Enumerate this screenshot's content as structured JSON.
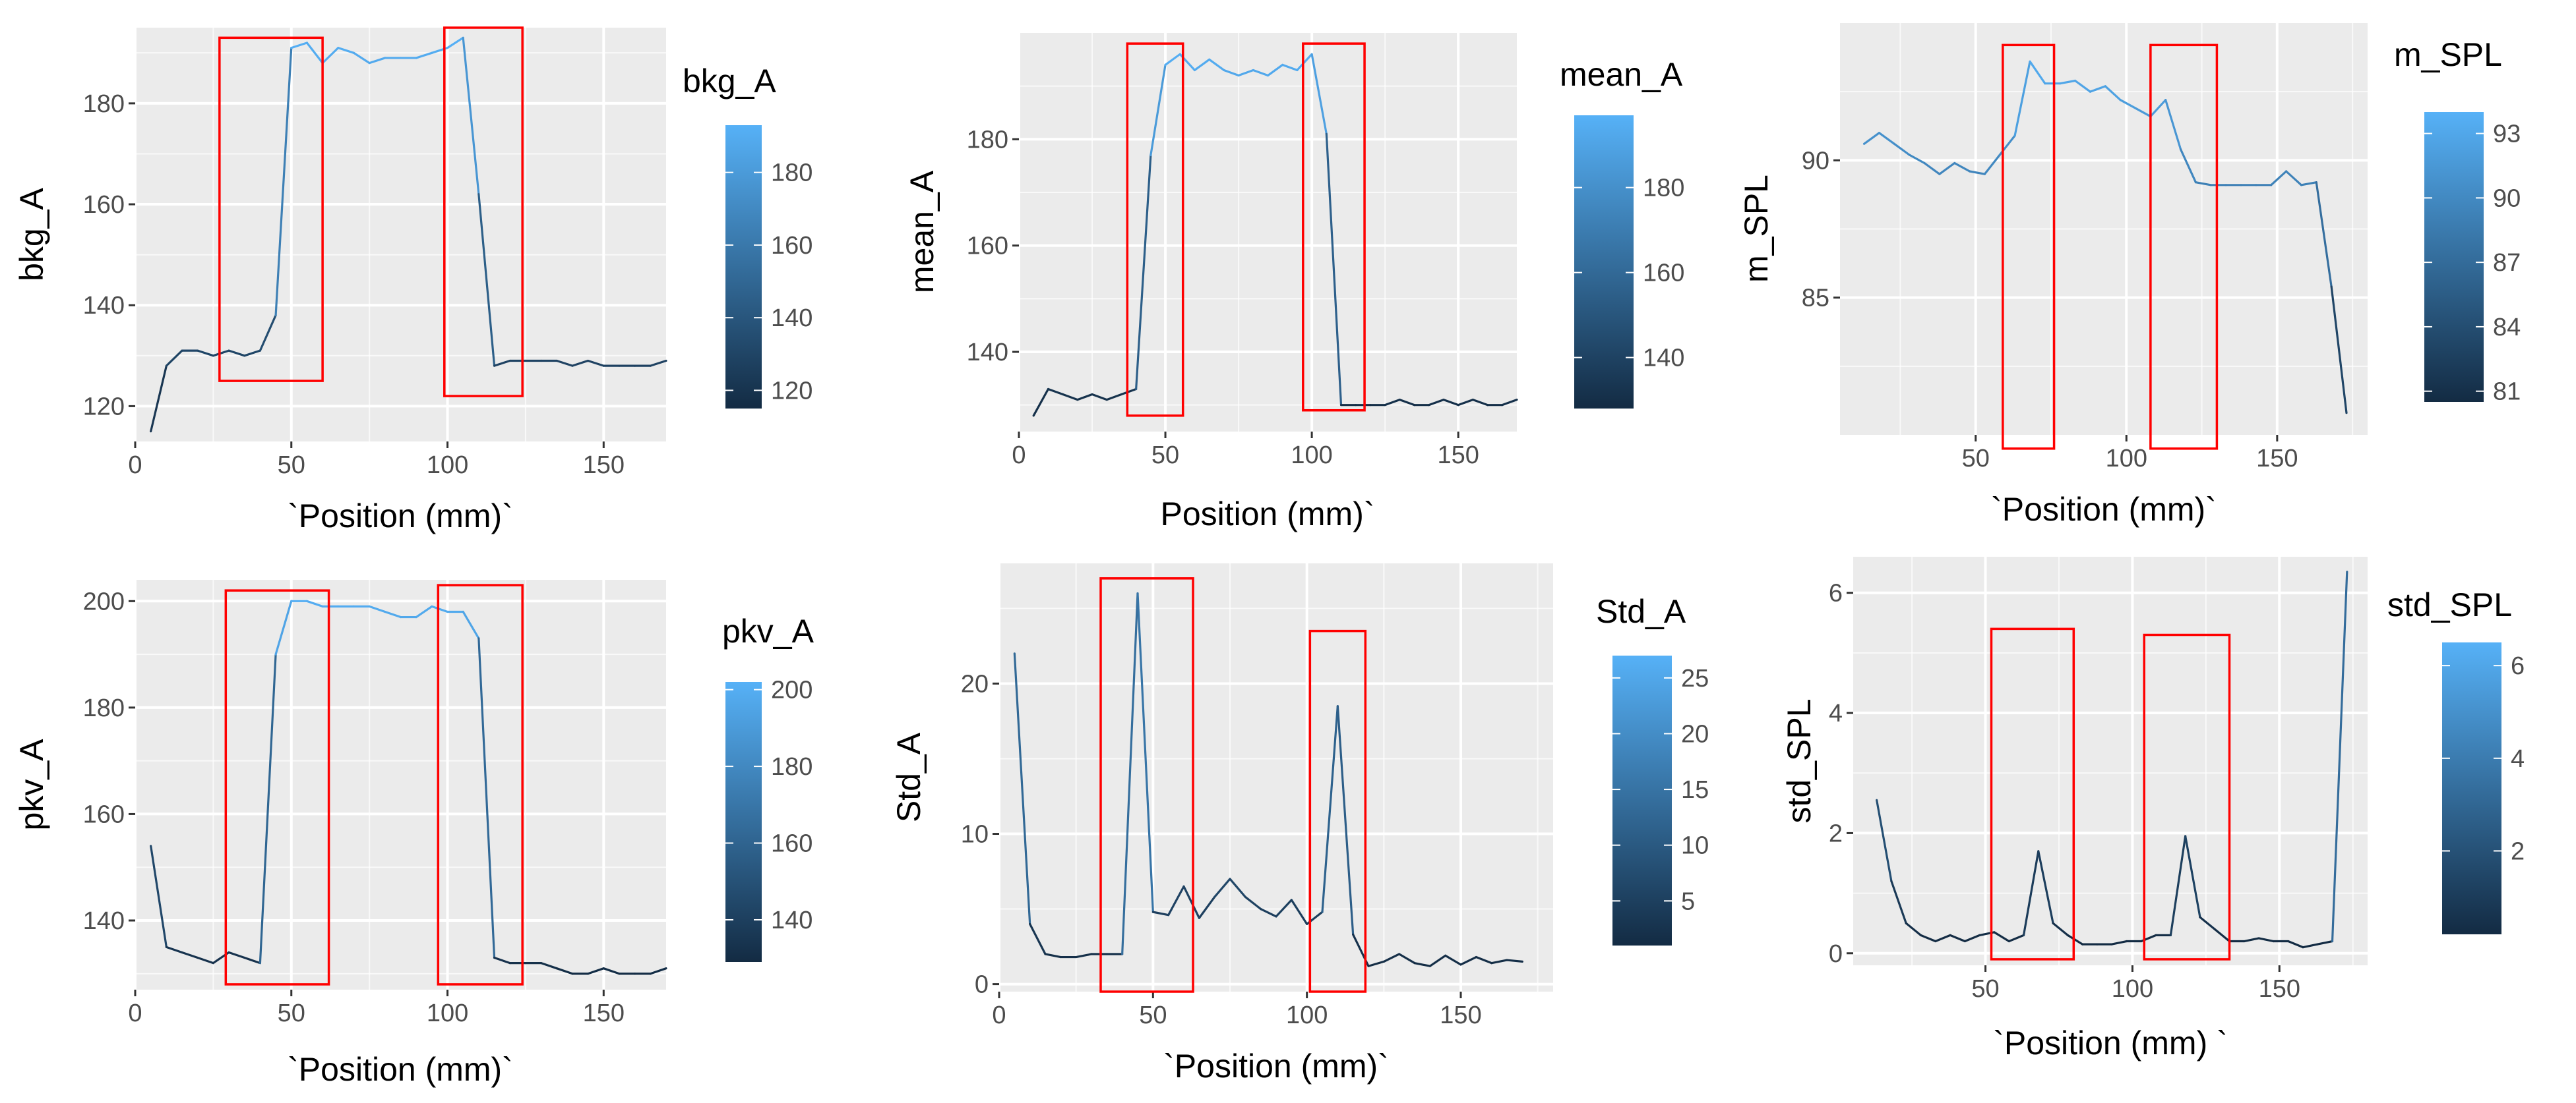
{
  "colors": {
    "panel_bg": "#ebebeb",
    "grid_major": "#ffffff",
    "line_low": "#132b43",
    "line_high": "#56b1f7",
    "box": "#ff0000",
    "tick": "#333333"
  },
  "chart_data": [
    {
      "type": "line",
      "xlabel": "`Position (mm)`",
      "ylabel": "bkg_A",
      "legend_title": "bkg_A",
      "xlim": [
        0,
        170
      ],
      "ylim": [
        113,
        195
      ],
      "xticks": [
        0,
        50,
        100,
        150
      ],
      "yticks": [
        120,
        140,
        160,
        180
      ],
      "legend_ticks": [
        120,
        140,
        160,
        180
      ],
      "legend_range": [
        115,
        193
      ],
      "x": [
        5,
        10,
        15,
        20,
        25,
        30,
        35,
        40,
        45,
        50,
        55,
        60,
        65,
        70,
        75,
        80,
        85,
        90,
        95,
        100,
        105,
        110,
        115,
        120,
        125,
        130,
        135,
        140,
        145,
        150,
        155,
        160,
        165,
        170
      ],
      "y": [
        115,
        128,
        131,
        131,
        130,
        131,
        130,
        131,
        138,
        191,
        192,
        188,
        191,
        190,
        188,
        189,
        189,
        189,
        190,
        191,
        193,
        162,
        128,
        129,
        129,
        129,
        129,
        128,
        129,
        128,
        128,
        128,
        128,
        129
      ],
      "boxes": [
        [
          27,
          60,
          125,
          193
        ],
        [
          99,
          124,
          122,
          195
        ]
      ]
    },
    {
      "type": "line",
      "xlabel": "Position (mm)`",
      "ylabel": "mean_A",
      "legend_title": "mean_A",
      "xlim": [
        0,
        170
      ],
      "ylim": [
        125,
        200
      ],
      "xticks": [
        0,
        50,
        100,
        150
      ],
      "yticks": [
        140,
        160,
        180
      ],
      "legend_ticks": [
        140,
        160,
        180
      ],
      "legend_range": [
        128,
        197
      ],
      "x": [
        5,
        10,
        15,
        20,
        25,
        30,
        35,
        40,
        45,
        50,
        55,
        60,
        65,
        70,
        75,
        80,
        85,
        90,
        95,
        100,
        105,
        110,
        115,
        120,
        125,
        130,
        135,
        140,
        145,
        150,
        155,
        160,
        165,
        170
      ],
      "y": [
        128,
        133,
        132,
        131,
        132,
        131,
        132,
        133,
        177,
        194,
        196,
        193,
        195,
        193,
        192,
        193,
        192,
        194,
        193,
        196,
        181,
        130,
        130,
        130,
        130,
        131,
        130,
        130,
        131,
        130,
        131,
        130,
        130,
        131
      ],
      "boxes": [
        [
          37,
          56,
          128,
          198
        ],
        [
          97,
          118,
          129,
          198
        ]
      ]
    },
    {
      "type": "line",
      "xlabel": "`Position (mm)`",
      "ylabel": "m_SPL",
      "legend_title": "m_SPL",
      "xlim": [
        5,
        180
      ],
      "ylim": [
        80,
        95
      ],
      "xticks": [
        50,
        100,
        150
      ],
      "yticks": [
        85,
        90
      ],
      "legend_ticks": [
        81,
        84,
        87,
        90,
        93
      ],
      "legend_range": [
        80.5,
        94
      ],
      "x": [
        13,
        18,
        23,
        28,
        33,
        38,
        43,
        48,
        53,
        58,
        63,
        68,
        73,
        78,
        83,
        88,
        93,
        98,
        103,
        108,
        113,
        118,
        123,
        128,
        133,
        138,
        143,
        148,
        153,
        158,
        163,
        168,
        173
      ],
      "y": [
        90.6,
        91.0,
        90.6,
        90.2,
        89.9,
        89.5,
        89.9,
        89.6,
        89.5,
        90.2,
        90.9,
        93.6,
        92.8,
        92.8,
        92.9,
        92.5,
        92.7,
        92.2,
        91.9,
        91.6,
        92.2,
        90.4,
        89.2,
        89.1,
        89.1,
        89.1,
        89.1,
        89.1,
        89.6,
        89.1,
        89.2,
        85.4,
        80.8
      ],
      "boxes": [
        [
          59,
          76,
          79.5,
          94.2
        ],
        [
          108,
          130,
          79.5,
          94.2
        ]
      ]
    },
    {
      "type": "line",
      "xlabel": "`Position (mm)`",
      "ylabel": "pkv_A",
      "legend_title": "pkv_A",
      "xlim": [
        0,
        170
      ],
      "ylim": [
        127,
        204
      ],
      "xticks": [
        0,
        50,
        100,
        150
      ],
      "yticks": [
        140,
        160,
        180,
        200
      ],
      "legend_ticks": [
        140,
        160,
        180,
        200
      ],
      "legend_range": [
        129,
        202
      ],
      "x": [
        5,
        10,
        15,
        20,
        25,
        30,
        35,
        40,
        45,
        50,
        55,
        60,
        65,
        70,
        75,
        80,
        85,
        90,
        95,
        100,
        105,
        110,
        115,
        120,
        125,
        130,
        135,
        140,
        145,
        150,
        155,
        160,
        165,
        170
      ],
      "y": [
        154,
        135,
        134,
        133,
        132,
        134,
        133,
        132,
        190,
        200,
        200,
        199,
        199,
        199,
        199,
        198,
        197,
        197,
        199,
        198,
        198,
        193,
        133,
        132,
        132,
        132,
        131,
        130,
        130,
        131,
        130,
        130,
        130,
        131
      ],
      "boxes": [
        [
          29,
          62,
          128,
          202
        ],
        [
          97,
          124,
          128,
          203
        ]
      ]
    },
    {
      "type": "line",
      "xlabel": "`Position (mm)`",
      "ylabel": "Std_A",
      "legend_title": "Std_A",
      "xlim": [
        0,
        180
      ],
      "ylim": [
        -0.5,
        28
      ],
      "xticks": [
        0,
        50,
        100,
        150
      ],
      "yticks": [
        0,
        10,
        20
      ],
      "legend_ticks": [
        5,
        10,
        15,
        20,
        25
      ],
      "legend_range": [
        1,
        27
      ],
      "x": [
        5,
        10,
        15,
        20,
        25,
        30,
        35,
        40,
        45,
        50,
        55,
        60,
        65,
        70,
        75,
        80,
        85,
        90,
        95,
        100,
        105,
        110,
        115,
        120,
        125,
        130,
        135,
        140,
        145,
        150,
        155,
        160,
        165,
        170
      ],
      "y": [
        22,
        4,
        2,
        1.8,
        1.8,
        2,
        2,
        2,
        26,
        4.8,
        4.6,
        6.5,
        4.4,
        5.8,
        7,
        5.8,
        5.0,
        4.5,
        5.6,
        4,
        4.8,
        18.5,
        3.3,
        1.2,
        1.5,
        2,
        1.4,
        1.2,
        1.9,
        1.3,
        1.8,
        1.4,
        1.6,
        1.5
      ],
      "boxes": [
        [
          33,
          63,
          -0.5,
          27
        ],
        [
          101,
          119,
          -0.5,
          23.5
        ]
      ]
    },
    {
      "type": "line",
      "xlabel": "`Position (mm)   `",
      "ylabel": "std_SPL",
      "legend_title": "std_SPL",
      "xlim": [
        5,
        180
      ],
      "ylim": [
        -0.2,
        6.6
      ],
      "xticks": [
        50,
        100,
        150
      ],
      "yticks": [
        0,
        2,
        4,
        6
      ],
      "legend_ticks": [
        2,
        4,
        6
      ],
      "legend_range": [
        0.2,
        6.5
      ],
      "x": [
        13,
        18,
        23,
        28,
        33,
        38,
        43,
        48,
        53,
        58,
        63,
        68,
        73,
        78,
        83,
        88,
        93,
        98,
        103,
        108,
        113,
        118,
        123,
        128,
        133,
        138,
        143,
        148,
        153,
        158,
        163,
        168,
        173
      ],
      "y": [
        2.55,
        1.2,
        0.5,
        0.3,
        0.2,
        0.3,
        0.2,
        0.3,
        0.35,
        0.2,
        0.3,
        1.7,
        0.5,
        0.3,
        0.15,
        0.15,
        0.15,
        0.2,
        0.2,
        0.3,
        0.3,
        1.95,
        0.6,
        0.4,
        0.2,
        0.2,
        0.25,
        0.2,
        0.2,
        0.1,
        0.15,
        0.2,
        6.35
      ],
      "boxes": [
        [
          52,
          80,
          -0.1,
          5.4
        ],
        [
          104,
          133,
          -0.1,
          5.3
        ]
      ]
    }
  ]
}
